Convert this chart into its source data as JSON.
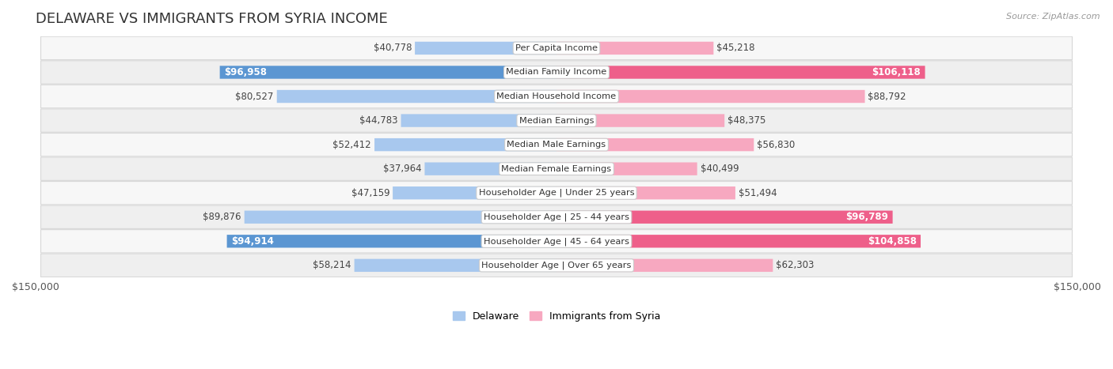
{
  "title": "DELAWARE VS IMMIGRANTS FROM SYRIA INCOME",
  "source": "Source: ZipAtlas.com",
  "categories": [
    "Per Capita Income",
    "Median Family Income",
    "Median Household Income",
    "Median Earnings",
    "Median Male Earnings",
    "Median Female Earnings",
    "Householder Age | Under 25 years",
    "Householder Age | 25 - 44 years",
    "Householder Age | 45 - 64 years",
    "Householder Age | Over 65 years"
  ],
  "delaware_values": [
    40778,
    96958,
    80527,
    44783,
    52412,
    37964,
    47159,
    89876,
    94914,
    58214
  ],
  "syria_values": [
    45218,
    106118,
    88792,
    48375,
    56830,
    40499,
    51494,
    96789,
    104858,
    62303
  ],
  "delaware_labels": [
    "$40,778",
    "$96,958",
    "$80,527",
    "$44,783",
    "$52,412",
    "$37,964",
    "$47,159",
    "$89,876",
    "$94,914",
    "$58,214"
  ],
  "syria_labels": [
    "$45,218",
    "$106,118",
    "$88,792",
    "$48,375",
    "$56,830",
    "$40,499",
    "$51,494",
    "$96,789",
    "$104,858",
    "$62,303"
  ],
  "delaware_color_light": "#a8c8ee",
  "delaware_color_dark": "#5b96d2",
  "syria_color_light": "#f7a8c0",
  "syria_color_dark": "#ee5f8a",
  "row_bg_colors": [
    "#f7f7f7",
    "#efefef",
    "#f7f7f7",
    "#efefef",
    "#f7f7f7",
    "#efefef",
    "#f7f7f7",
    "#efefef",
    "#f7f7f7",
    "#efefef"
  ],
  "row_border_color": "#d8d8d8",
  "max_value": 150000,
  "xlabel_left": "$150,000",
  "xlabel_right": "$150,000",
  "legend_delaware": "Delaware",
  "legend_syria": "Immigrants from Syria",
  "title_fontsize": 13,
  "label_fontsize": 8.5,
  "axis_fontsize": 9,
  "background_color": "#ffffff",
  "inside_label_threshold": 0.57,
  "delaware_inside": [
    false,
    true,
    false,
    false,
    false,
    false,
    false,
    false,
    true,
    false
  ],
  "syria_inside": [
    false,
    true,
    false,
    false,
    false,
    false,
    false,
    true,
    true,
    false
  ]
}
